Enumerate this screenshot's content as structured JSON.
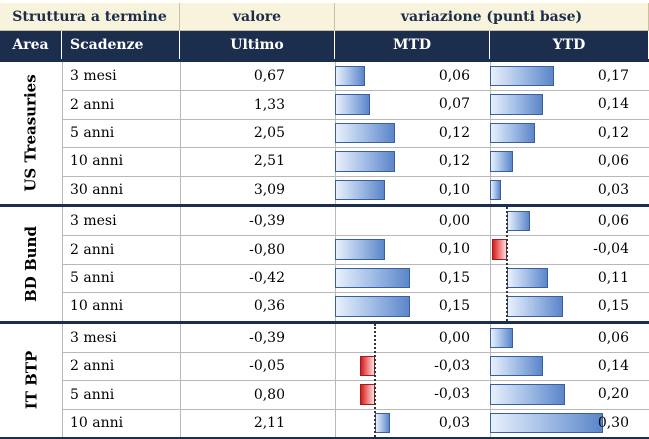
{
  "header": {
    "group_title": "Struttura a termine",
    "value_title": "valore",
    "change_title": "variazione (punti base)",
    "col_area": "Area",
    "col_maturity": "Scadenze",
    "col_last": "Ultimo",
    "col_mtd": "MTD",
    "col_ytd": "YTD"
  },
  "groups": [
    {
      "area": "US Treasuries",
      "rows": [
        {
          "maturity": "3 mesi",
          "last": "0,67",
          "mtd": "0,06",
          "ytd": "0,17"
        },
        {
          "maturity": "2 anni",
          "last": "1,33",
          "mtd": "0,07",
          "ytd": "0,14"
        },
        {
          "maturity": "5 anni",
          "last": "2,05",
          "mtd": "0,12",
          "ytd": "0,12"
        },
        {
          "maturity": "10 anni",
          "last": "2,51",
          "mtd": "0,12",
          "ytd": "0,06"
        },
        {
          "maturity": "30 anni",
          "last": "3,09",
          "mtd": "0,10",
          "ytd": "0,03"
        }
      ]
    },
    {
      "area": "BD Bund",
      "rows": [
        {
          "maturity": "3 mesi",
          "last": "-0,39",
          "mtd": "0,00",
          "ytd": "0,06"
        },
        {
          "maturity": "2 anni",
          "last": "-0,80",
          "mtd": "0,10",
          "ytd": "-0,04"
        },
        {
          "maturity": "5 anni",
          "last": "-0,42",
          "mtd": "0,15",
          "ytd": "0,11"
        },
        {
          "maturity": "10 anni",
          "last": "0,36",
          "mtd": "0,15",
          "ytd": "0,15"
        }
      ]
    },
    {
      "area": "IT BTP",
      "rows": [
        {
          "maturity": "3 mesi",
          "last": "-0,39",
          "mtd": "0,00",
          "ytd": "0,06"
        },
        {
          "maturity": "2 anni",
          "last": "-0,05",
          "mtd": "-0,03",
          "ytd": "0,14"
        },
        {
          "maturity": "5 anni",
          "last": "0,80",
          "mtd": "-0,03",
          "ytd": "0,20"
        },
        {
          "maturity": "10 anni",
          "last": "2,11",
          "mtd": "0,03",
          "ytd": "0,30"
        }
      ]
    }
  ],
  "colors": {
    "header_bg": "#1c2e4e",
    "top_header_bg": "#f7f3dd",
    "positive_bar": "#5b86c9",
    "negative_bar": "#d41c1c"
  }
}
